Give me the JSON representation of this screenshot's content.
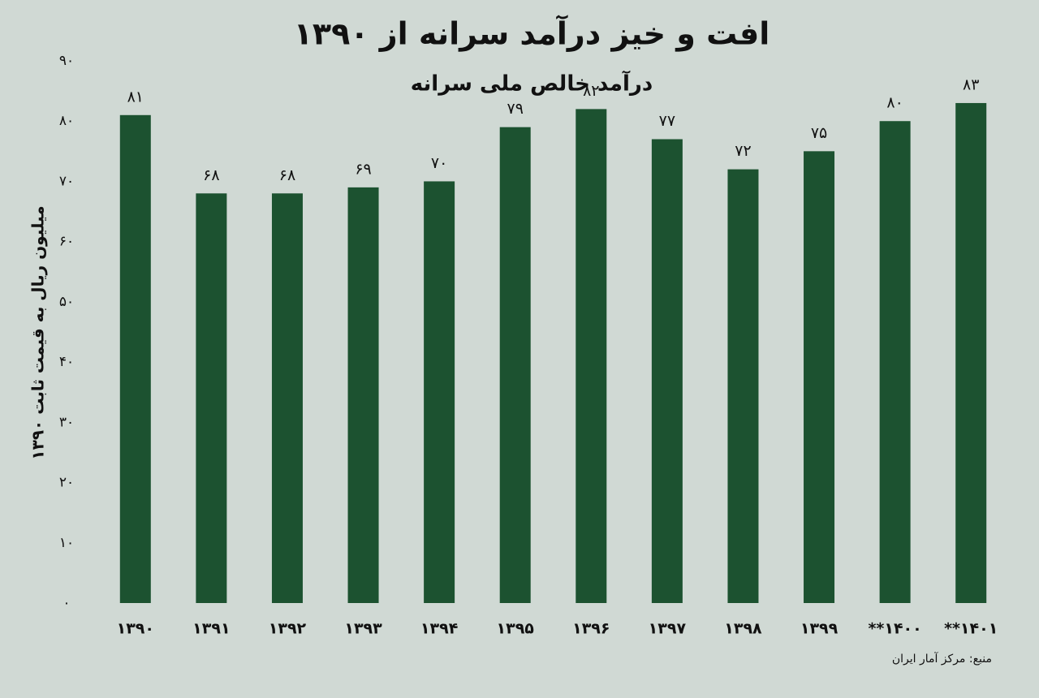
{
  "chart_data": {
    "type": "bar",
    "title": "افت و خیز درآمد سرانه از ۱۳۹۰",
    "subtitle": "درآمد خالص ملی سرانه",
    "y_label": "میلیون ریال به قیمت ثابت ۱۳۹۰",
    "source": "منبع: مرکز آمار ایران",
    "categories": [
      "۱۳۹۰",
      "۱۳۹۱",
      "۱۳۹۲",
      "۱۳۹۳",
      "۱۳۹۴",
      "۱۳۹۵",
      "۱۳۹۶",
      "۱۳۹۷",
      "۱۳۹۸",
      "۱۳۹۹",
      "**۱۴۰۰",
      "**۱۴۰۱"
    ],
    "values": [
      81,
      68,
      68,
      69,
      70,
      79,
      82,
      77,
      72,
      75,
      80,
      83
    ],
    "value_labels": [
      "۸۱",
      "۶۸",
      "۶۸",
      "۶۹",
      "۷۰",
      "۷۹",
      "۸۲",
      "۷۷",
      "۷۲",
      "۷۵",
      "۸۰",
      "۸۳"
    ],
    "color": "#1c5230",
    "ylim": [
      0,
      90
    ],
    "yticks": [
      {
        "value": 0,
        "label": "۰"
      },
      {
        "value": 10,
        "label": "۱۰"
      },
      {
        "value": 20,
        "label": "۲۰"
      },
      {
        "value": 30,
        "label": "۳۰"
      },
      {
        "value": 40,
        "label": "۴۰"
      },
      {
        "value": 50,
        "label": "۵۰"
      },
      {
        "value": 60,
        "label": "۶۰"
      },
      {
        "value": 70,
        "label": "۷۰"
      },
      {
        "value": 80,
        "label": "۸۰"
      },
      {
        "value": 90,
        "label": "۹۰"
      }
    ],
    "grid": false
  }
}
